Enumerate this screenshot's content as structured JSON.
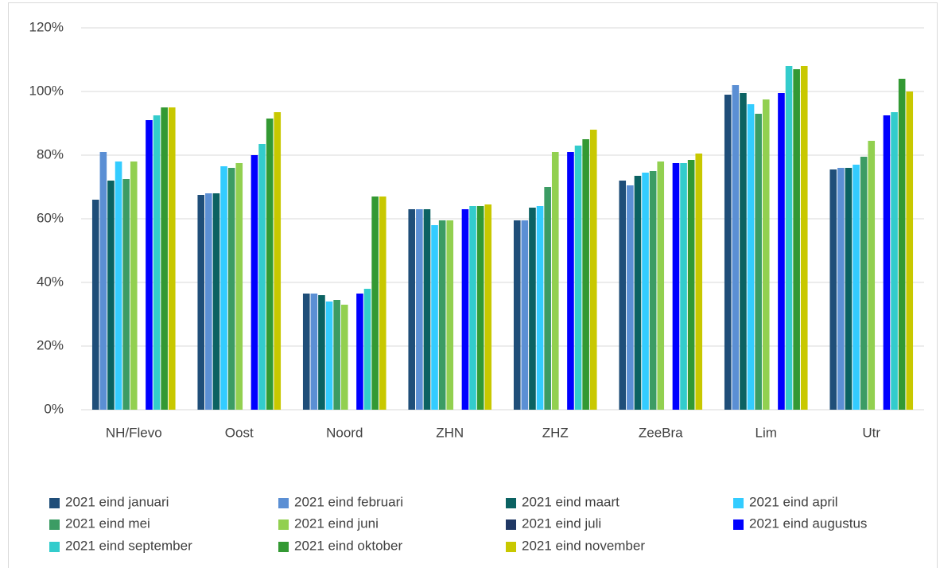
{
  "chart_data": {
    "type": "bar",
    "categories": [
      "NH/Flevo",
      "Oost",
      "Noord",
      "ZHN",
      "ZHZ",
      "ZeeBra",
      "Lim",
      "Utr"
    ],
    "series": [
      {
        "name": "2021 eind januari",
        "color": "#1f4e79",
        "values": [
          66,
          67.5,
          36.5,
          63,
          59.5,
          72,
          99,
          75.5
        ]
      },
      {
        "name": "2021 eind februari",
        "color": "#5b8fd4",
        "values": [
          81,
          68,
          36.5,
          63,
          59.5,
          70.5,
          102,
          76
        ]
      },
      {
        "name": "2021 eind maart",
        "color": "#0b6262",
        "values": [
          72,
          68,
          36,
          63,
          63.5,
          73.5,
          99.5,
          76
        ]
      },
      {
        "name": "2021 eind april",
        "color": "#33ccff",
        "values": [
          78,
          76.5,
          34,
          58,
          64,
          74.5,
          96,
          77
        ]
      },
      {
        "name": "2021 eind  mei",
        "color": "#3c9c64",
        "values": [
          72.5,
          76,
          34.5,
          59.5,
          70,
          75,
          93,
          79.5
        ]
      },
      {
        "name": "2021 eind juni",
        "color": "#92d050",
        "values": [
          78,
          77.5,
          33,
          59.5,
          81,
          78,
          97.5,
          84.5
        ]
      },
      {
        "name": "2021 eind juli",
        "color": "#203864",
        "values": [
          null,
          null,
          null,
          null,
          null,
          null,
          null,
          null
        ]
      },
      {
        "name": "2021 eind augustus",
        "color": "#0000ff",
        "values": [
          91,
          80,
          36.5,
          63,
          81,
          77.5,
          99.5,
          92.5
        ]
      },
      {
        "name": "2021 eind september",
        "color": "#33cccc",
        "values": [
          92.5,
          83.5,
          38,
          64,
          83,
          77.5,
          108,
          93.5
        ]
      },
      {
        "name": "2021 eind oktober",
        "color": "#339933",
        "values": [
          95,
          91.5,
          67,
          64,
          85,
          78.5,
          107,
          104
        ]
      },
      {
        "name": "2021 eind november",
        "color": "#c8c800",
        "values": [
          95,
          93.5,
          67,
          64.5,
          88,
          80.5,
          108,
          100
        ]
      }
    ],
    "ylim": [
      0,
      120
    ],
    "yticks": [
      {
        "value": 0,
        "label": "0%"
      },
      {
        "value": 20,
        "label": "20%"
      },
      {
        "value": 40,
        "label": "40%"
      },
      {
        "value": 60,
        "label": "60%"
      },
      {
        "value": 80,
        "label": "80%"
      },
      {
        "value": 100,
        "label": "100%"
      },
      {
        "value": 120,
        "label": "120%"
      }
    ],
    "grid": true
  }
}
